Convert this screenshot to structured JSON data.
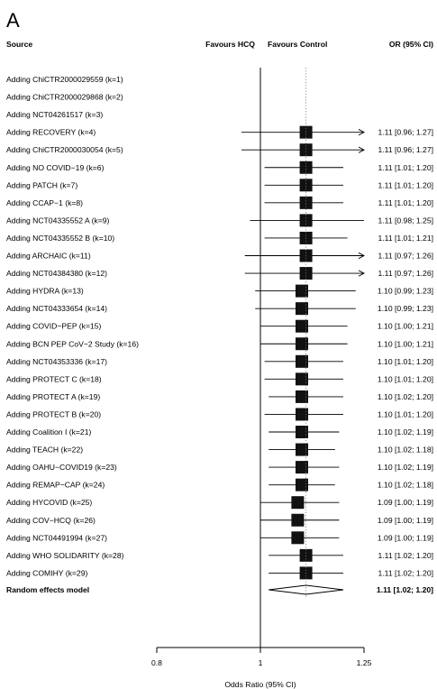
{
  "chart_data": {
    "type": "forest",
    "panel_label": "A",
    "headers": {
      "source": "Source",
      "favours_left": "Favours HCQ",
      "favours_right": "Favours Control",
      "or_ci": "OR (95% CI)"
    },
    "xlabel": "Odds Ratio (95% CI)",
    "xlim": [
      0.8,
      1.25
    ],
    "xticks": [
      0.8,
      1,
      1.25
    ],
    "xtick_labels": [
      "0.8",
      "1",
      "1.25"
    ],
    "null_value": 1,
    "reference_line_dotted_at": 1.11,
    "studies": [
      {
        "label": "Adding ChiCTR2000029559 (k=1)",
        "or": null,
        "lo": null,
        "hi": null,
        "ci_text": ""
      },
      {
        "label": "Adding ChiCTR2000029868 (k=2)",
        "or": null,
        "lo": null,
        "hi": null,
        "ci_text": ""
      },
      {
        "label": "Adding NCT04261517 (k=3)",
        "or": null,
        "lo": null,
        "hi": null,
        "ci_text": ""
      },
      {
        "label": "Adding RECOVERY (k=4)",
        "or": 1.11,
        "lo": 0.96,
        "hi": 1.27,
        "ci_text": "1.11 [0.96; 1.27]"
      },
      {
        "label": "Adding ChiCTR2000030054 (k=5)",
        "or": 1.11,
        "lo": 0.96,
        "hi": 1.27,
        "ci_text": "1.11 [0.96; 1.27]"
      },
      {
        "label": "Adding NO COVID−19 (k=6)",
        "or": 1.11,
        "lo": 1.01,
        "hi": 1.2,
        "ci_text": "1.11 [1.01; 1.20]"
      },
      {
        "label": "Adding PATCH (k=7)",
        "or": 1.11,
        "lo": 1.01,
        "hi": 1.2,
        "ci_text": "1.11 [1.01; 1.20]"
      },
      {
        "label": "Adding CCAP−1 (k=8)",
        "or": 1.11,
        "lo": 1.01,
        "hi": 1.2,
        "ci_text": "1.11 [1.01; 1.20]"
      },
      {
        "label": "Adding NCT04335552 A (k=9)",
        "or": 1.11,
        "lo": 0.98,
        "hi": 1.25,
        "ci_text": "1.11 [0.98; 1.25]"
      },
      {
        "label": "Adding NCT04335552 B (k=10)",
        "or": 1.11,
        "lo": 1.01,
        "hi": 1.21,
        "ci_text": "1.11 [1.01; 1.21]"
      },
      {
        "label": "Adding ARCHAIC (k=11)",
        "or": 1.11,
        "lo": 0.97,
        "hi": 1.26,
        "ci_text": "1.11 [0.97; 1.26]"
      },
      {
        "label": "Adding NCT04384380 (k=12)",
        "or": 1.11,
        "lo": 0.97,
        "hi": 1.26,
        "ci_text": "1.11 [0.97; 1.26]"
      },
      {
        "label": "Adding HYDRA (k=13)",
        "or": 1.1,
        "lo": 0.99,
        "hi": 1.23,
        "ci_text": "1.10 [0.99; 1.23]"
      },
      {
        "label": "Adding NCT04333654 (k=14)",
        "or": 1.1,
        "lo": 0.99,
        "hi": 1.23,
        "ci_text": "1.10 [0.99; 1.23]"
      },
      {
        "label": "Adding COVID−PEP (k=15)",
        "or": 1.1,
        "lo": 1.0,
        "hi": 1.21,
        "ci_text": "1.10 [1.00; 1.21]"
      },
      {
        "label": "Adding BCN PEP CoV−2 Study (k=16)",
        "or": 1.1,
        "lo": 1.0,
        "hi": 1.21,
        "ci_text": "1.10 [1.00; 1.21]"
      },
      {
        "label": "Adding NCT04353336 (k=17)",
        "or": 1.1,
        "lo": 1.01,
        "hi": 1.2,
        "ci_text": "1.10 [1.01; 1.20]"
      },
      {
        "label": "Adding PROTECT C (k=18)",
        "or": 1.1,
        "lo": 1.01,
        "hi": 1.2,
        "ci_text": "1.10 [1.01; 1.20]"
      },
      {
        "label": "Adding PROTECT A (k=19)",
        "or": 1.1,
        "lo": 1.02,
        "hi": 1.2,
        "ci_text": "1.10 [1.02; 1.20]"
      },
      {
        "label": "Adding PROTECT B (k=20)",
        "or": 1.1,
        "lo": 1.01,
        "hi": 1.2,
        "ci_text": "1.10 [1.01; 1.20]"
      },
      {
        "label": "Adding Coalition I (k=21)",
        "or": 1.1,
        "lo": 1.02,
        "hi": 1.19,
        "ci_text": "1.10 [1.02; 1.19]"
      },
      {
        "label": "Adding TEACH (k=22)",
        "or": 1.1,
        "lo": 1.02,
        "hi": 1.18,
        "ci_text": "1.10 [1.02; 1.18]"
      },
      {
        "label": "Adding OAHU−COVID19 (k=23)",
        "or": 1.1,
        "lo": 1.02,
        "hi": 1.19,
        "ci_text": "1.10 [1.02; 1.19]"
      },
      {
        "label": "Adding REMAP−CAP (k=24)",
        "or": 1.1,
        "lo": 1.02,
        "hi": 1.18,
        "ci_text": "1.10 [1.02; 1.18]"
      },
      {
        "label": "Adding HYCOVID (k=25)",
        "or": 1.09,
        "lo": 1.0,
        "hi": 1.19,
        "ci_text": "1.09 [1.00; 1.19]"
      },
      {
        "label": "Adding COV−HCQ (k=26)",
        "or": 1.09,
        "lo": 1.0,
        "hi": 1.19,
        "ci_text": "1.09 [1.00; 1.19]"
      },
      {
        "label": "Adding NCT04491994 (k=27)",
        "or": 1.09,
        "lo": 1.0,
        "hi": 1.19,
        "ci_text": "1.09 [1.00; 1.19]"
      },
      {
        "label": "Adding WHO SOLIDARITY (k=28)",
        "or": 1.11,
        "lo": 1.02,
        "hi": 1.2,
        "ci_text": "1.11 [1.02; 1.20]"
      },
      {
        "label": "Adding COMIHY (k=29)",
        "or": 1.11,
        "lo": 1.02,
        "hi": 1.2,
        "ci_text": "1.11 [1.02; 1.20]"
      }
    ],
    "pooled": {
      "label": "Random effects model",
      "or": 1.11,
      "lo": 1.02,
      "hi": 1.2,
      "ci_text": "1.11 [1.02; 1.20]"
    }
  }
}
